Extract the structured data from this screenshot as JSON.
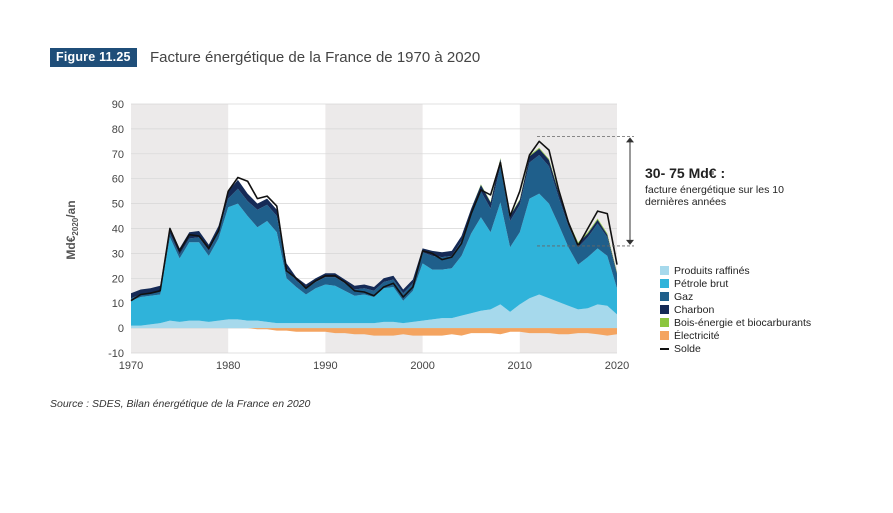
{
  "figure": {
    "badge": "Figure 11.25",
    "title": "Facture énergétique de la France de 1970 à 2020"
  },
  "source": "Source : SDES, Bilan énergétique de la France en 2020",
  "annotation": {
    "headline": "30- 75 Md€ :",
    "text": "facture énergétique sur les 10 dernières années",
    "range": [
      33,
      77
    ]
  },
  "chart_data": {
    "type": "area",
    "title": "Facture énergétique de la France de 1970 à 2020",
    "ylabel_main": "Md€",
    "ylabel_sub": "2020",
    "ylabel_unit": "/an",
    "ylim": [
      -10,
      90
    ],
    "yticks": [
      -10,
      0,
      10,
      20,
      30,
      40,
      50,
      60,
      70,
      80,
      90
    ],
    "xlim": [
      1970,
      2020
    ],
    "xticks": [
      1970,
      1980,
      1990,
      2000,
      2010,
      2020
    ],
    "grid": "alternating decade bands",
    "legend_placement": "right",
    "x": [
      1970,
      1971,
      1972,
      1973,
      1974,
      1975,
      1976,
      1977,
      1978,
      1979,
      1980,
      1981,
      1982,
      1983,
      1984,
      1985,
      1986,
      1987,
      1988,
      1989,
      1990,
      1991,
      1992,
      1993,
      1994,
      1995,
      1996,
      1997,
      1998,
      1999,
      2000,
      2001,
      2002,
      2003,
      2004,
      2005,
      2006,
      2007,
      2008,
      2009,
      2010,
      2011,
      2012,
      2013,
      2014,
      2015,
      2016,
      2017,
      2018,
      2019,
      2020
    ],
    "series": [
      {
        "name": "Produits raffinés",
        "color": "#a6d9ec",
        "kind": "area",
        "values": [
          1.0,
          1.0,
          1.5,
          2.0,
          3.0,
          2.5,
          3.0,
          3.0,
          2.5,
          3.0,
          3.5,
          3.5,
          3.0,
          3.0,
          2.5,
          2.0,
          2.0,
          2.0,
          2.0,
          2.0,
          2.0,
          2.0,
          2.0,
          2.0,
          2.0,
          2.0,
          2.5,
          2.5,
          2.0,
          2.5,
          3.0,
          3.5,
          4.0,
          4.0,
          5.0,
          6.0,
          7.0,
          7.5,
          9.5,
          6.5,
          9.5,
          12.0,
          13.5,
          12.0,
          10.5,
          9.0,
          7.5,
          8.0,
          9.5,
          9.0,
          5.5
        ]
      },
      {
        "name": "Pétrole brut",
        "color": "#2fb3da",
        "kind": "area",
        "values": [
          10.0,
          11.5,
          11.5,
          11.5,
          33.5,
          25.5,
          31.5,
          31.5,
          26.5,
          33.0,
          45.0,
          46.5,
          42.0,
          37.5,
          40.5,
          36.5,
          18.0,
          14.5,
          11.5,
          14.0,
          15.5,
          15.0,
          13.0,
          11.0,
          11.5,
          10.5,
          13.5,
          14.0,
          9.0,
          12.5,
          23.0,
          20.0,
          19.5,
          20.0,
          24.0,
          32.0,
          37.5,
          31.0,
          41.0,
          26.0,
          29.0,
          40.0,
          40.5,
          38.0,
          31.0,
          23.5,
          18.0,
          20.5,
          22.5,
          20.0,
          10.5
        ]
      },
      {
        "name": "Gaz",
        "color": "#1f5f8b",
        "kind": "area",
        "values": [
          1.0,
          1.0,
          1.0,
          1.5,
          1.5,
          1.5,
          1.5,
          2.0,
          2.0,
          2.5,
          3.5,
          6.0,
          6.0,
          7.0,
          6.5,
          6.5,
          4.0,
          2.5,
          2.5,
          2.5,
          3.0,
          3.5,
          3.0,
          2.5,
          2.5,
          2.5,
          2.5,
          3.0,
          3.0,
          3.0,
          4.5,
          5.5,
          5.0,
          5.0,
          6.0,
          8.0,
          10.5,
          9.5,
          14.5,
          10.5,
          11.0,
          14.5,
          15.5,
          15.0,
          11.0,
          8.5,
          7.0,
          8.0,
          10.0,
          7.5,
          5.5
        ]
      },
      {
        "name": "Charbon",
        "color": "#152a56",
        "kind": "area",
        "values": [
          2.0,
          2.0,
          2.0,
          2.0,
          2.5,
          2.5,
          2.5,
          2.5,
          2.5,
          2.5,
          3.0,
          3.5,
          3.0,
          2.5,
          2.5,
          2.5,
          2.0,
          1.5,
          1.5,
          1.5,
          1.5,
          1.5,
          1.5,
          1.5,
          1.5,
          1.5,
          1.5,
          1.5,
          1.5,
          1.5,
          1.5,
          2.0,
          2.0,
          2.0,
          2.0,
          2.0,
          2.5,
          2.5,
          3.0,
          2.0,
          2.0,
          2.5,
          2.5,
          2.5,
          2.0,
          1.5,
          1.5,
          1.5,
          1.5,
          1.0,
          0.5
        ]
      },
      {
        "name": "Bois-énergie et biocarburants",
        "color": "#8cc63f",
        "kind": "area",
        "values": [
          0,
          0,
          0,
          0,
          0,
          0,
          0,
          0,
          0,
          0,
          0,
          0,
          0,
          0,
          0,
          0,
          0,
          0,
          0,
          0,
          0,
          0,
          0,
          0,
          0,
          0,
          0,
          0,
          0,
          0,
          0,
          0,
          0,
          0,
          0,
          0,
          0.3,
          0.3,
          0.3,
          0.3,
          0.3,
          0.4,
          0.4,
          0.4,
          0.4,
          0.4,
          0.5,
          0.5,
          0.5,
          0.5,
          0.4
        ]
      },
      {
        "name": "Électricité",
        "color": "#f4a460",
        "kind": "area",
        "values": [
          0,
          0,
          0,
          0,
          0,
          0,
          0,
          0,
          0,
          0,
          0,
          0,
          0,
          -0.5,
          -0.5,
          -1.0,
          -1.0,
          -1.5,
          -1.5,
          -1.5,
          -1.5,
          -2.0,
          -2.0,
          -2.5,
          -2.5,
          -3.0,
          -3.0,
          -3.0,
          -2.5,
          -3.0,
          -3.0,
          -3.0,
          -3.0,
          -2.5,
          -3.0,
          -2.0,
          -2.0,
          -2.0,
          -2.5,
          -1.5,
          -1.5,
          -2.0,
          -2.0,
          -2.0,
          -2.5,
          -2.5,
          -2.0,
          -2.0,
          -2.5,
          -3.0,
          -2.5
        ]
      },
      {
        "name": "Solde",
        "color": "#111111",
        "kind": "line",
        "values": [
          11,
          13.5,
          14,
          15,
          40,
          31,
          37.5,
          37,
          32,
          39,
          55,
          60.5,
          59,
          52,
          53,
          49,
          23,
          20,
          16,
          19,
          21,
          21,
          18.5,
          15,
          14.5,
          13,
          16.5,
          18,
          12.5,
          16.5,
          31,
          30,
          27.5,
          28.5,
          34,
          46,
          55.5,
          53.5,
          66.5,
          45,
          55,
          69.5,
          75,
          71.5,
          55.5,
          42.5,
          33,
          40,
          47,
          46,
          25.5
        ]
      }
    ]
  }
}
